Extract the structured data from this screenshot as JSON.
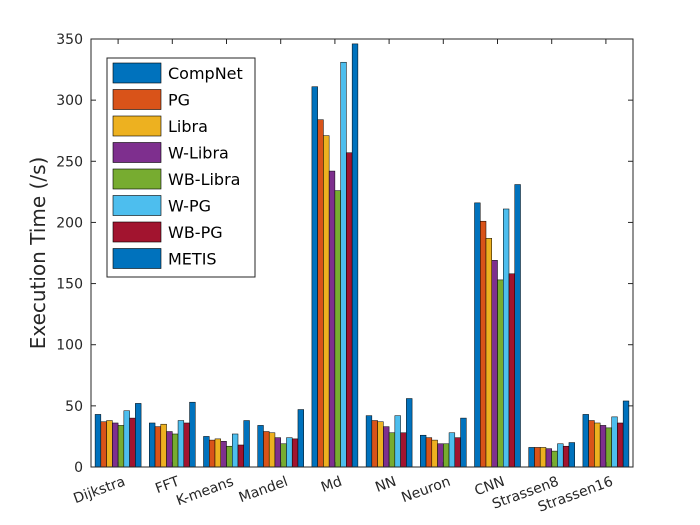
{
  "chart_data": {
    "type": "bar",
    "title": "",
    "xlabel": "",
    "ylabel": "Execution Time (/s)",
    "ylim": [
      0,
      350
    ],
    "yticks": [
      0,
      50,
      100,
      150,
      200,
      250,
      300,
      350
    ],
    "grid": false,
    "legend_position": "top-left",
    "categories": [
      "Dijkstra",
      "FFT",
      "K-means",
      "Mandel",
      "Md",
      "NN",
      "Neuron",
      "CNN",
      "Strassen8",
      "Strassen16"
    ],
    "series": [
      {
        "name": "CompNet",
        "color": "#0072BD",
        "values": [
          43,
          36,
          25,
          34,
          311,
          42,
          26,
          216,
          16,
          43
        ]
      },
      {
        "name": "PG",
        "color": "#D95319",
        "values": [
          37,
          33,
          22,
          29,
          284,
          38,
          24,
          201,
          16,
          38
        ]
      },
      {
        "name": "Libra",
        "color": "#EDB120",
        "values": [
          38,
          35,
          23,
          28,
          271,
          37,
          22,
          187,
          16,
          36
        ]
      },
      {
        "name": "W-Libra",
        "color": "#7E2F8E",
        "values": [
          36,
          29,
          21,
          24,
          242,
          33,
          19,
          169,
          15,
          34
        ]
      },
      {
        "name": "WB-Libra",
        "color": "#77AC30",
        "values": [
          34,
          27,
          17,
          19,
          226,
          28,
          19,
          153,
          13,
          32
        ]
      },
      {
        "name": "W-PG",
        "color": "#4DBEEE",
        "values": [
          46,
          38,
          27,
          24,
          331,
          42,
          28,
          211,
          19,
          41
        ]
      },
      {
        "name": "WB-PG",
        "color": "#A2142F",
        "values": [
          40,
          36,
          18,
          23,
          257,
          28,
          24,
          158,
          17,
          36
        ]
      },
      {
        "name": "METIS",
        "color": "#0072BD",
        "values": [
          52,
          53,
          38,
          47,
          346,
          56,
          40,
          231,
          20,
          54
        ]
      }
    ]
  }
}
